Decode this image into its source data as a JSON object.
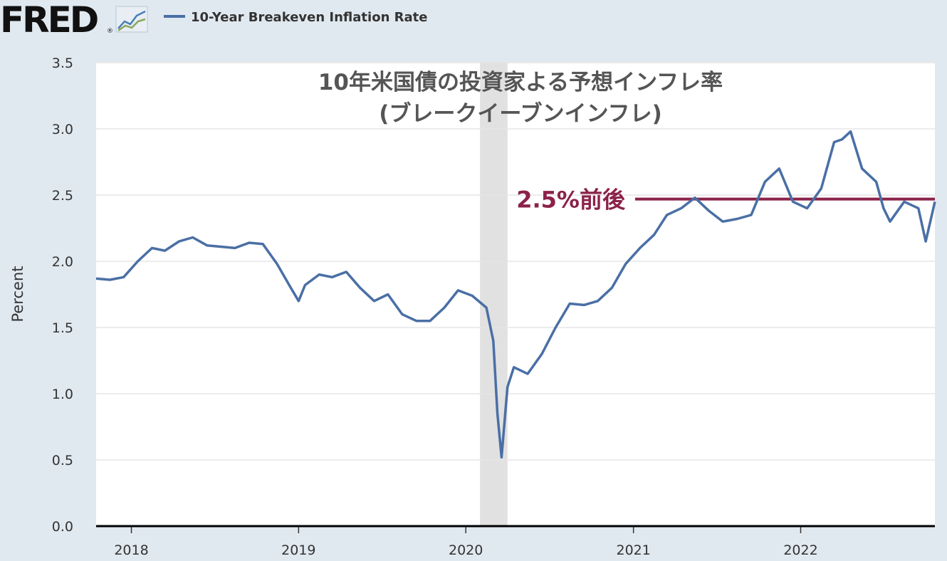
{
  "brand": {
    "logo_text": "FRED"
  },
  "colors": {
    "series": "#4a6fa5",
    "reference": "#8b2249",
    "recession": "#e1e1e1",
    "grid": "#e6e6e6",
    "page_bg": "#e1e9f0",
    "plot_bg": "#ffffff"
  },
  "icons": {
    "logo_chart": "line-chart-icon"
  },
  "chart_data": {
    "type": "line",
    "title": "10年米国債の投資家よる予想インフレ率",
    "subtitle": "(ブレークイーブンインフレ)",
    "ylabel": "Percent",
    "xlabel": "",
    "ylim": [
      0,
      3.5
    ],
    "yticks": [
      "0.0",
      "0.5",
      "1.0",
      "1.5",
      "2.0",
      "2.5",
      "3.0",
      "3.5"
    ],
    "xticks": [
      "2018",
      "2019",
      "2020",
      "2021",
      "2022"
    ],
    "xlim": [
      "2017-10-16",
      "2022-10-21"
    ],
    "grid": true,
    "legend": "top-left",
    "series": [
      {
        "name": "10-Year Breakeven Inflation Rate",
        "x": [
          "2017-10-16",
          "2017-11-15",
          "2017-12-15",
          "2018-01-15",
          "2018-02-15",
          "2018-03-15",
          "2018-04-15",
          "2018-05-15",
          "2018-06-15",
          "2018-07-15",
          "2018-08-15",
          "2018-09-15",
          "2018-10-15",
          "2018-11-15",
          "2018-12-15",
          "2019-01-01",
          "2019-01-15",
          "2019-02-15",
          "2019-03-15",
          "2019-04-15",
          "2019-05-15",
          "2019-06-15",
          "2019-07-15",
          "2019-08-15",
          "2019-09-15",
          "2019-10-15",
          "2019-11-15",
          "2019-12-15",
          "2020-01-15",
          "2020-02-15",
          "2020-03-01",
          "2020-03-10",
          "2020-03-19",
          "2020-04-01",
          "2020-04-15",
          "2020-05-15",
          "2020-06-15",
          "2020-07-15",
          "2020-08-15",
          "2020-09-15",
          "2020-10-15",
          "2020-11-15",
          "2020-12-15",
          "2021-01-15",
          "2021-02-15",
          "2021-03-15",
          "2021-04-15",
          "2021-05-15",
          "2021-06-15",
          "2021-07-15",
          "2021-08-15",
          "2021-09-15",
          "2021-10-15",
          "2021-11-15",
          "2021-12-15",
          "2022-01-15",
          "2022-02-15",
          "2022-03-15",
          "2022-04-01",
          "2022-04-20",
          "2022-05-15",
          "2022-06-15",
          "2022-07-01",
          "2022-07-15",
          "2022-08-15",
          "2022-09-15",
          "2022-10-01",
          "2022-10-21"
        ],
        "values": [
          1.87,
          1.86,
          1.88,
          2.0,
          2.1,
          2.08,
          2.15,
          2.18,
          2.12,
          2.11,
          2.1,
          2.14,
          2.13,
          1.98,
          1.8,
          1.7,
          1.82,
          1.9,
          1.88,
          1.92,
          1.8,
          1.7,
          1.75,
          1.6,
          1.55,
          1.55,
          1.65,
          1.78,
          1.74,
          1.65,
          1.4,
          0.85,
          0.52,
          1.05,
          1.2,
          1.15,
          1.3,
          1.5,
          1.68,
          1.67,
          1.7,
          1.8,
          1.98,
          2.1,
          2.2,
          2.35,
          2.4,
          2.48,
          2.38,
          2.3,
          2.32,
          2.35,
          2.6,
          2.7,
          2.45,
          2.4,
          2.55,
          2.9,
          2.92,
          2.98,
          2.7,
          2.6,
          2.4,
          2.3,
          2.45,
          2.4,
          2.15,
          2.45
        ]
      }
    ],
    "recessions": [
      {
        "start": "2020-02-01",
        "end": "2020-04-01"
      }
    ],
    "annotations": [
      {
        "text": "2.5%前後",
        "y": 2.47
      }
    ]
  }
}
